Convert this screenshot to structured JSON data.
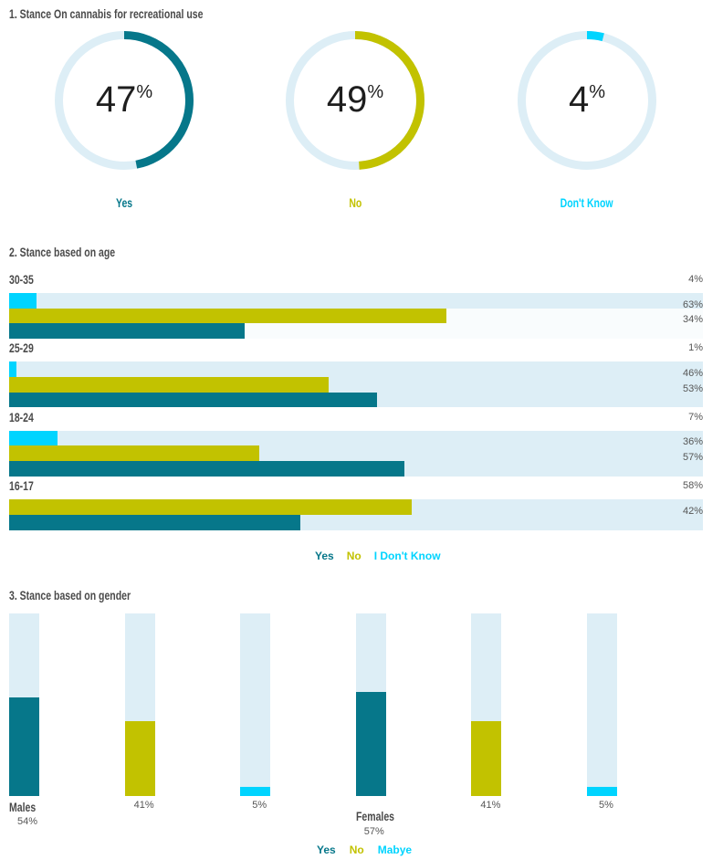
{
  "colors": {
    "yes": "#06778a",
    "no": "#c2c200",
    "dont_know": "#00d4ff",
    "track": "#ddeef6",
    "heading": "#4a4a4a",
    "value_text": "#1e1e1e",
    "label_text": "#555555"
  },
  "chart_data": [
    {
      "type": "pie",
      "variant": "donut",
      "title": "1. Stance On cannabis for recreational use",
      "categories": [
        "Yes",
        "No",
        "Don't Know"
      ],
      "values": [
        47,
        49,
        4
      ],
      "unit": "%",
      "color_keys": [
        "yes",
        "no",
        "dont_know"
      ]
    },
    {
      "type": "bar",
      "orientation": "horizontal",
      "title": "2. Stance based on age",
      "xlabel": "",
      "ylabel": "",
      "xlim": [
        0,
        100
      ],
      "grid": false,
      "categories": [
        "30-35",
        "25-29",
        "18-24",
        "16-17"
      ],
      "series": [
        {
          "name": "Yes",
          "color_key": "yes",
          "values": [
            34,
            53,
            57,
            42
          ],
          "data_labels": [
            "34%",
            "53%",
            "57%",
            "42%"
          ]
        },
        {
          "name": "No",
          "color_key": "no",
          "values": [
            63,
            46,
            36,
            58
          ],
          "data_labels": [
            "63%",
            "46%",
            "36%",
            "58%"
          ]
        },
        {
          "name": "I Don't Know",
          "color_key": "dont_know",
          "values": [
            4,
            1,
            7,
            null
          ],
          "data_labels": [
            "4%",
            "1%",
            "7%",
            null
          ]
        }
      ],
      "legend": {
        "placement": "bottom-center",
        "entries": [
          "Yes",
          "No",
          "I Don't Know"
        ]
      }
    },
    {
      "type": "bar",
      "orientation": "vertical",
      "title": "3. Stance based on gender",
      "xlabel": "",
      "ylabel": "",
      "ylim": [
        0,
        100
      ],
      "grid": false,
      "categories": [
        "Males",
        "Females"
      ],
      "series": [
        {
          "name": "Yes",
          "color_key": "yes",
          "values": [
            54,
            57
          ],
          "data_labels": [
            "54%",
            "57%"
          ]
        },
        {
          "name": "No",
          "color_key": "no",
          "values": [
            41,
            41
          ],
          "data_labels": [
            "41%",
            "41%"
          ]
        },
        {
          "name": "Mabye",
          "color_key": "dont_know",
          "values": [
            5,
            5
          ],
          "data_labels": [
            "5%",
            "5%"
          ]
        }
      ],
      "legend": {
        "placement": "bottom-center",
        "entries": [
          "Yes",
          "No",
          "Mabye"
        ]
      }
    }
  ]
}
